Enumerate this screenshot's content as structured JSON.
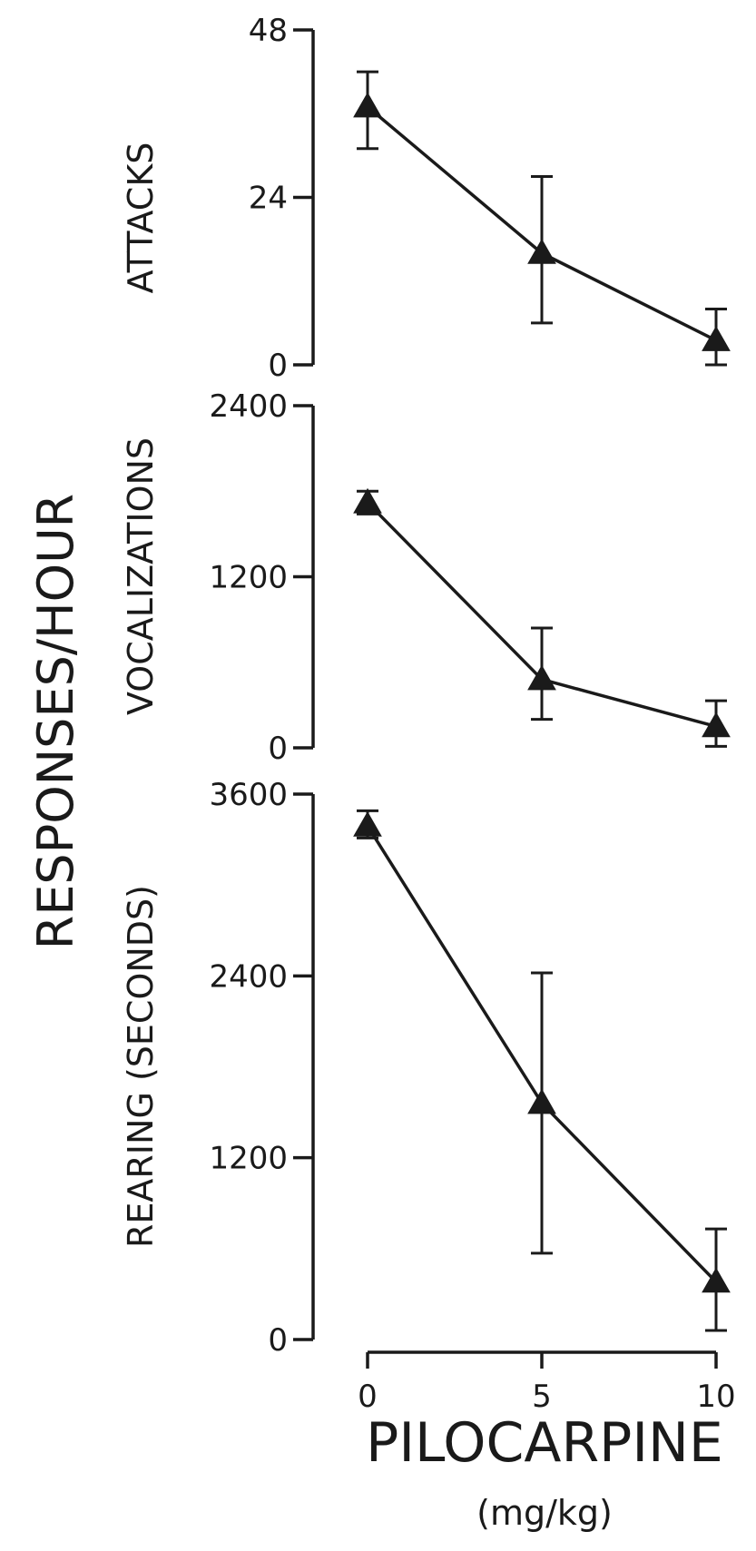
{
  "figure": {
    "y_title": "RESPONSES/HOUR",
    "x_title": "PILOCARPINE",
    "x_unit": "(mg/kg)",
    "x_ticks": [
      "0",
      "5",
      "10"
    ],
    "ink_color": "#1a1a1a",
    "background": "#ffffff"
  },
  "chart_data": [
    {
      "type": "line",
      "ylabel": "ATTACKS",
      "x": [
        0,
        5,
        10
      ],
      "values": [
        37,
        16,
        3.5
      ],
      "error_low": [
        31,
        6,
        0
      ],
      "error_high": [
        42,
        27,
        8
      ],
      "ylim": [
        0,
        48
      ],
      "yticks": [
        "0",
        "24",
        "48"
      ],
      "marker": "triangle"
    },
    {
      "type": "line",
      "ylabel": "VOCALIZATIONS",
      "x": [
        0,
        5,
        10
      ],
      "values": [
        1720,
        480,
        150
      ],
      "error_low": [
        1640,
        200,
        10
      ],
      "error_high": [
        1800,
        840,
        330
      ],
      "ylim": [
        0,
        2400
      ],
      "yticks": [
        "0",
        "1200",
        "2400"
      ],
      "marker": "triangle"
    },
    {
      "type": "line",
      "ylabel": "REARING (SECONDS)",
      "x": [
        0,
        5,
        10
      ],
      "values": [
        3390,
        1560,
        380
      ],
      "error_low": [
        3310,
        570,
        60
      ],
      "error_high": [
        3490,
        2420,
        730
      ],
      "ylim": [
        0,
        3600
      ],
      "yticks": [
        "0",
        "1200",
        "2400",
        "3600"
      ],
      "marker": "triangle"
    }
  ]
}
